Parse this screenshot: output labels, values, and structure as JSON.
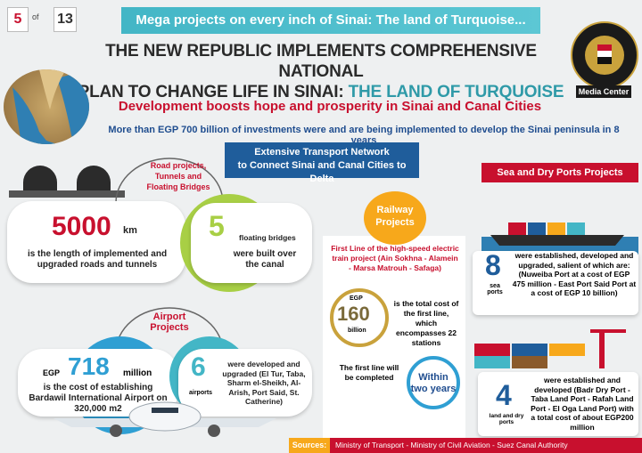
{
  "page": {
    "current": "5",
    "of": "of",
    "total": "13"
  },
  "banner": "Mega projects on every inch of Sinai: The land of Turquoise...",
  "title": {
    "line1": "THE NEW REPUBLIC IMPLEMENTS COMPREHENSIVE NATIONAL",
    "line2a": "PLAN TO CHANGE LIFE IN SINAI: ",
    "line2b": "THE LAND OF TURQUOISE"
  },
  "logo": {
    "text": "The Arab Republic Of Egypt The Cabinet Of Ministers",
    "label": "Media Center"
  },
  "subtitle": "Development boosts hope and prosperity in Sinai and Canal Cities",
  "investment": "More than EGP 700 billion of investments were and are being implemented to develop the Sinai peninsula in 8 years",
  "transport_header": {
    "line1": "Extensive Transport Network",
    "line2": "to Connect Sinai and Canal Cities to Delta"
  },
  "roads": {
    "label": "Road projects, Tunnels and Floating Bridges",
    "km_value": "5000",
    "km_unit": "km",
    "km_desc": "is the length of implemented and upgraded roads and tunnels",
    "bridges_value": "5",
    "bridges_unit": "floating bridges",
    "bridges_desc": "were built over the canal"
  },
  "airport": {
    "label": "Airport Projects",
    "cost_prefix": "EGP",
    "cost_value": "718",
    "cost_unit": "million",
    "cost_desc": "is the cost of establishing Bardawil International Airport on 320,000 m2",
    "count_value": "6",
    "count_unit": "airports",
    "count_desc": "were developed and upgraded (El Tur, Taba, Sharm el-Sheikh, Al-Arish, Port Said, St. Catherine)"
  },
  "railway": {
    "label": "Railway Projects",
    "desc": "First Line of the high-speed electric train project (Ain Sokhna - Alamein - Marsa Matrouh - Safaga)",
    "cost_prefix": "EGP",
    "cost_value": "160",
    "cost_unit": "billion",
    "cost_desc": "is the total cost of the first line, which encompasses 22 stations",
    "complete_desc": "The first line will be completed",
    "complete_value": "Within two years"
  },
  "ports": {
    "header": "Sea and Dry Ports Projects",
    "sea_value": "8",
    "sea_unit": "sea ports",
    "sea_desc": "were established, developed and upgraded, salient of which are: (Nuweiba Port at a cost of EGP 475 million - East Port Said Port at a cost of EGP 10 billion)",
    "dry_value": "4",
    "dry_unit": "land and dry ports",
    "dry_desc": "were established and developed (Badr Dry Port - Taba Land Port - Rafah Land Port - El Oga Land Port) with a total cost of about EGP200 million"
  },
  "sources": {
    "label": "Sources:",
    "text": "Ministry of Transport - Ministry of Civil Aviation - Suez Canal Authority"
  }
}
